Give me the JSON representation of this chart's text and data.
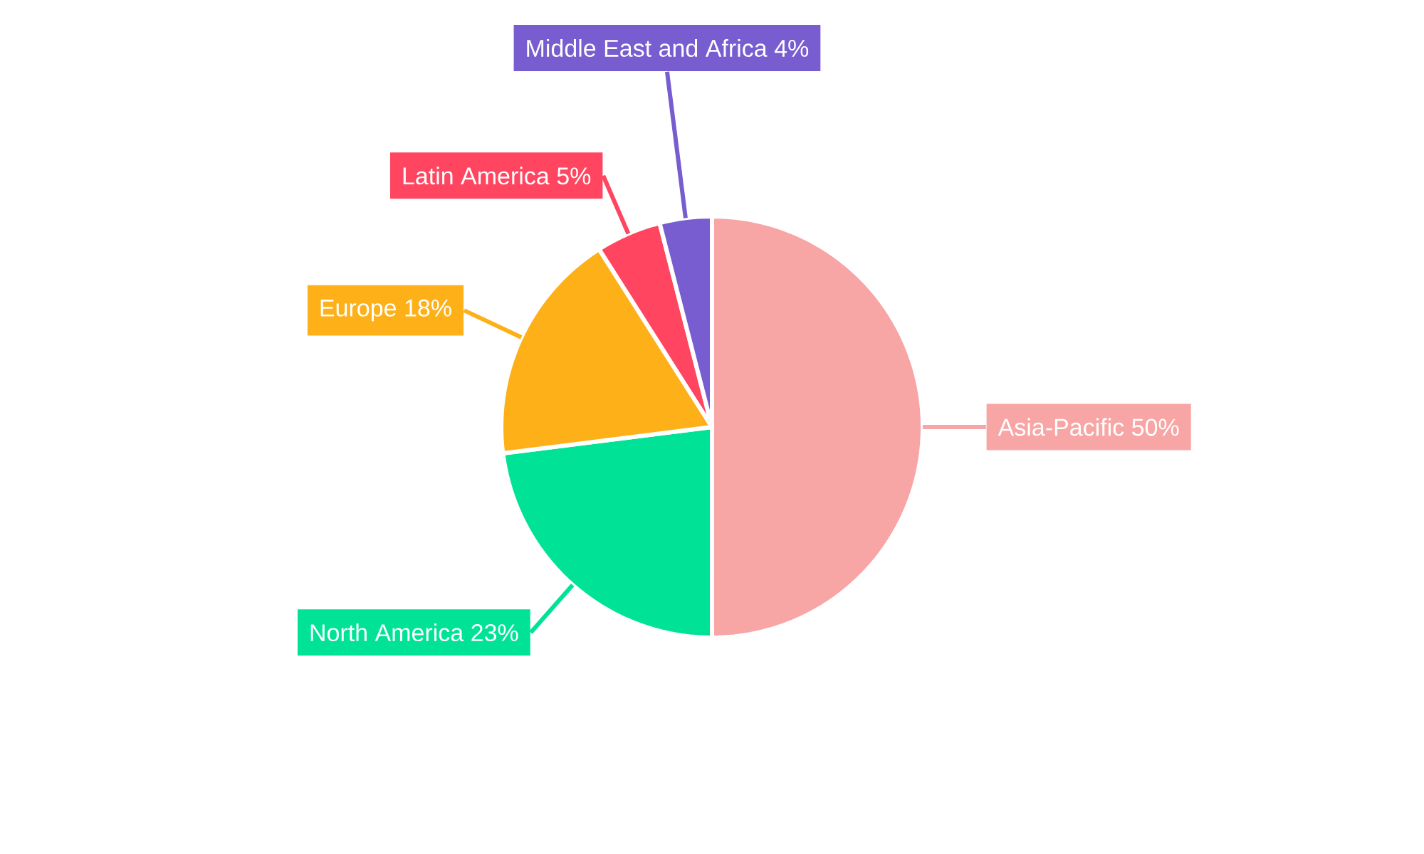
{
  "chart_data": {
    "type": "pie",
    "categories": [
      "Asia-Pacific",
      "North America",
      "Europe",
      "Latin America",
      "Middle East and Africa"
    ],
    "values": [
      50,
      23,
      18,
      5,
      4
    ],
    "value_labels": [
      "50%",
      "23%",
      "18%",
      "5%",
      "4%"
    ],
    "colors": [
      "#f8a5a5",
      "#00e396",
      "#feb019",
      "#ff4560",
      "#775dd0"
    ]
  }
}
